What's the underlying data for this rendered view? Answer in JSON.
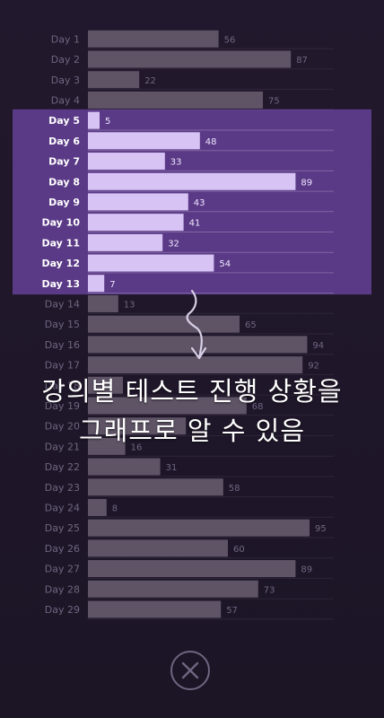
{
  "caption": {
    "line1": "강의별 테스트 진행 상황을",
    "line2": "그래프로 알 수 있음"
  },
  "close_icon": "close-icon",
  "colors": {
    "background": "#211829",
    "bar_default": "#5e5466",
    "bar_highlight": "#d8c3f5",
    "highlight_panel": "#5a3a86",
    "label_default": "#6f6680",
    "label_highlight": "#ffffff",
    "value_default": "#6f6680",
    "value_highlight": "#f0e6ff",
    "arrow": "#d8d0e6",
    "close_button": "#6f6580"
  },
  "chart_data": {
    "type": "bar",
    "orientation": "horizontal",
    "categories": [
      "Day 1",
      "Day 2",
      "Day 3",
      "Day 4",
      "Day 5",
      "Day 6",
      "Day 7",
      "Day 8",
      "Day 9",
      "Day 10",
      "Day 11",
      "Day 12",
      "Day 13",
      "Day 14",
      "Day 15",
      "Day 16",
      "Day 17",
      "Day 18",
      "Day 19",
      "Day 20",
      "Day 21",
      "Day 22",
      "Day 23",
      "Day 24",
      "Day 25",
      "Day 26",
      "Day 27",
      "Day 28",
      "Day 29"
    ],
    "values": [
      56,
      87,
      22,
      75,
      5,
      48,
      33,
      89,
      43,
      41,
      32,
      54,
      7,
      13,
      65,
      94,
      92,
      15,
      68,
      42,
      16,
      31,
      58,
      8,
      95,
      60,
      89,
      73,
      57
    ],
    "value_labels_shown": [
      true,
      true,
      true,
      true,
      true,
      true,
      true,
      true,
      true,
      true,
      true,
      true,
      true,
      true,
      true,
      true,
      true,
      false,
      true,
      false,
      true,
      true,
      true,
      true,
      true,
      true,
      true,
      true,
      true
    ],
    "highlighted_range": [
      "Day 5",
      "Day 13"
    ],
    "xlim": [
      0,
      100
    ],
    "title": "",
    "xlabel": "",
    "ylabel": ""
  }
}
